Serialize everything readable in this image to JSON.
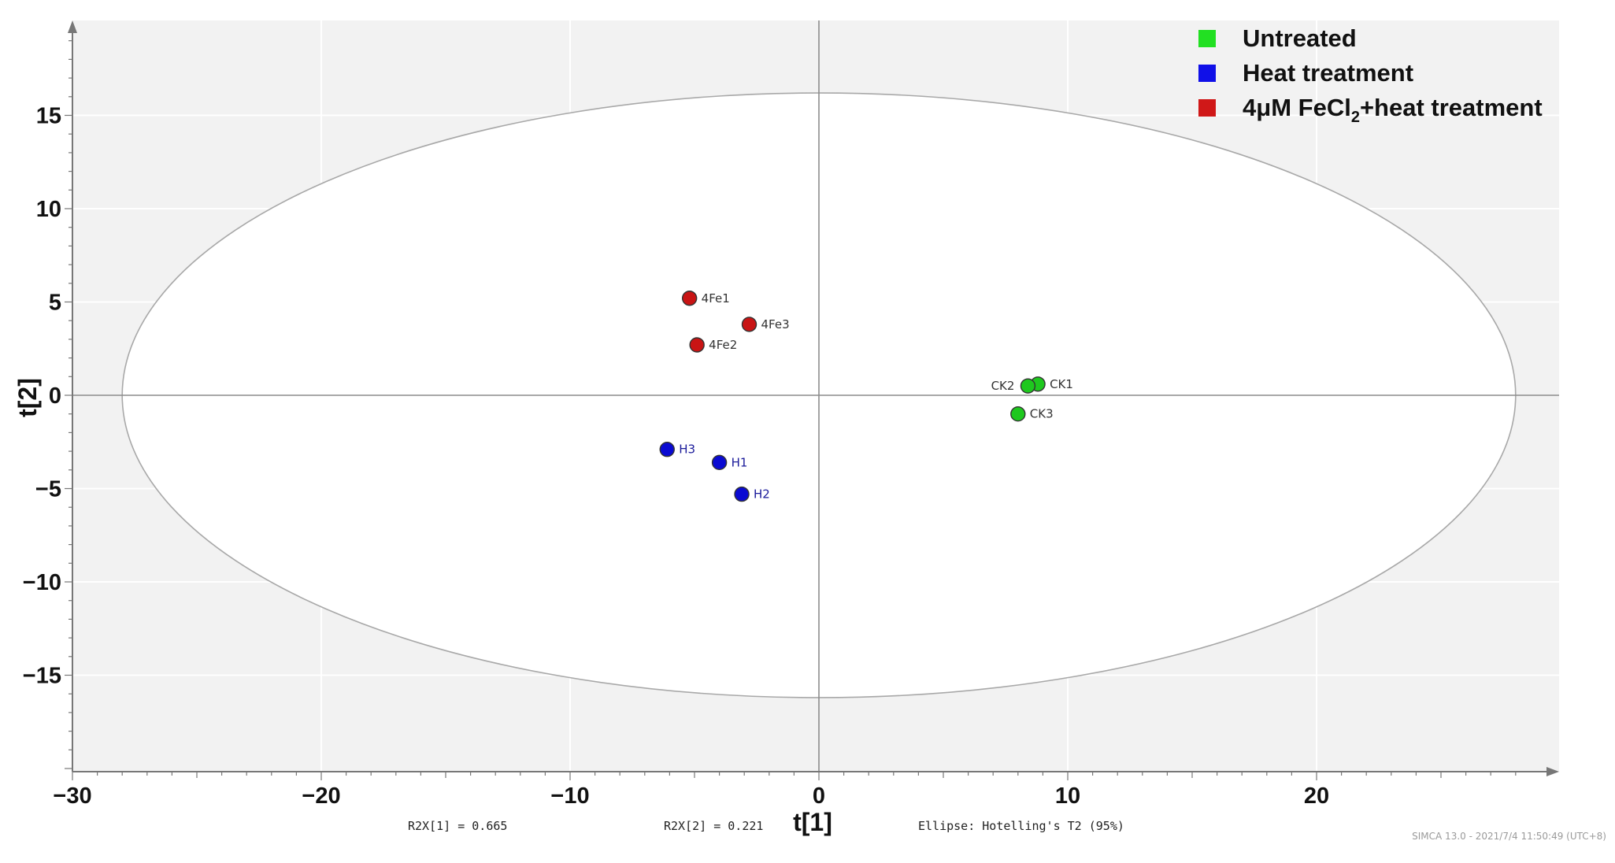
{
  "chart_data": {
    "type": "scatter",
    "xlabel": "t[1]",
    "ylabel": "t[2]",
    "xlim": [
      -30,
      30
    ],
    "ylim": [
      -20,
      20
    ],
    "xticks": [
      -30,
      -20,
      -10,
      0,
      10,
      20
    ],
    "yticks": [
      -15,
      -10,
      -5,
      0,
      5,
      10,
      15
    ],
    "grid": true,
    "legend": "top-right",
    "ellipse": {
      "label": "Ellipse: Hotelling's T2 (95%)",
      "rx": 28,
      "ry": 16.2
    },
    "series": [
      {
        "name": "Untreated",
        "color": "#1ec81e",
        "label_color": "#333333",
        "points": [
          {
            "label": "CK1",
            "x": 8.8,
            "y": 0.6
          },
          {
            "label": "CK2",
            "x": 8.4,
            "y": 0.5
          },
          {
            "label": "CK3",
            "x": 8.0,
            "y": -1.0
          }
        ]
      },
      {
        "name": "Heat treatment",
        "color": "#0a0ad2",
        "label_color": "#1a1a9a",
        "points": [
          {
            "label": "H1",
            "x": -4.0,
            "y": -3.6
          },
          {
            "label": "H2",
            "x": -3.1,
            "y": -5.3
          },
          {
            "label": "H3",
            "x": -6.1,
            "y": -2.9
          }
        ]
      },
      {
        "name": "4μM FeCl2+heat treatment",
        "name_main": "4μM FeCl",
        "name_sub": "2",
        "name_tail": "+heat treatment",
        "color": "#c81414",
        "label_color": "#333333",
        "points": [
          {
            "label": "4Fe1",
            "x": -5.2,
            "y": 5.2
          },
          {
            "label": "4Fe2",
            "x": -4.9,
            "y": 2.7
          },
          {
            "label": "4Fe3",
            "x": -2.8,
            "y": 3.8
          }
        ]
      }
    ],
    "annotations": {
      "r2x1": "R2X[1] = 0.665",
      "r2x2": "R2X[2] = 0.221",
      "ellipse_note": "Ellipse: Hotelling's T2 (95%)",
      "watermark": "SIMCA 13.0 - 2021/7/4 11:50:49 (UTC+8)"
    }
  }
}
